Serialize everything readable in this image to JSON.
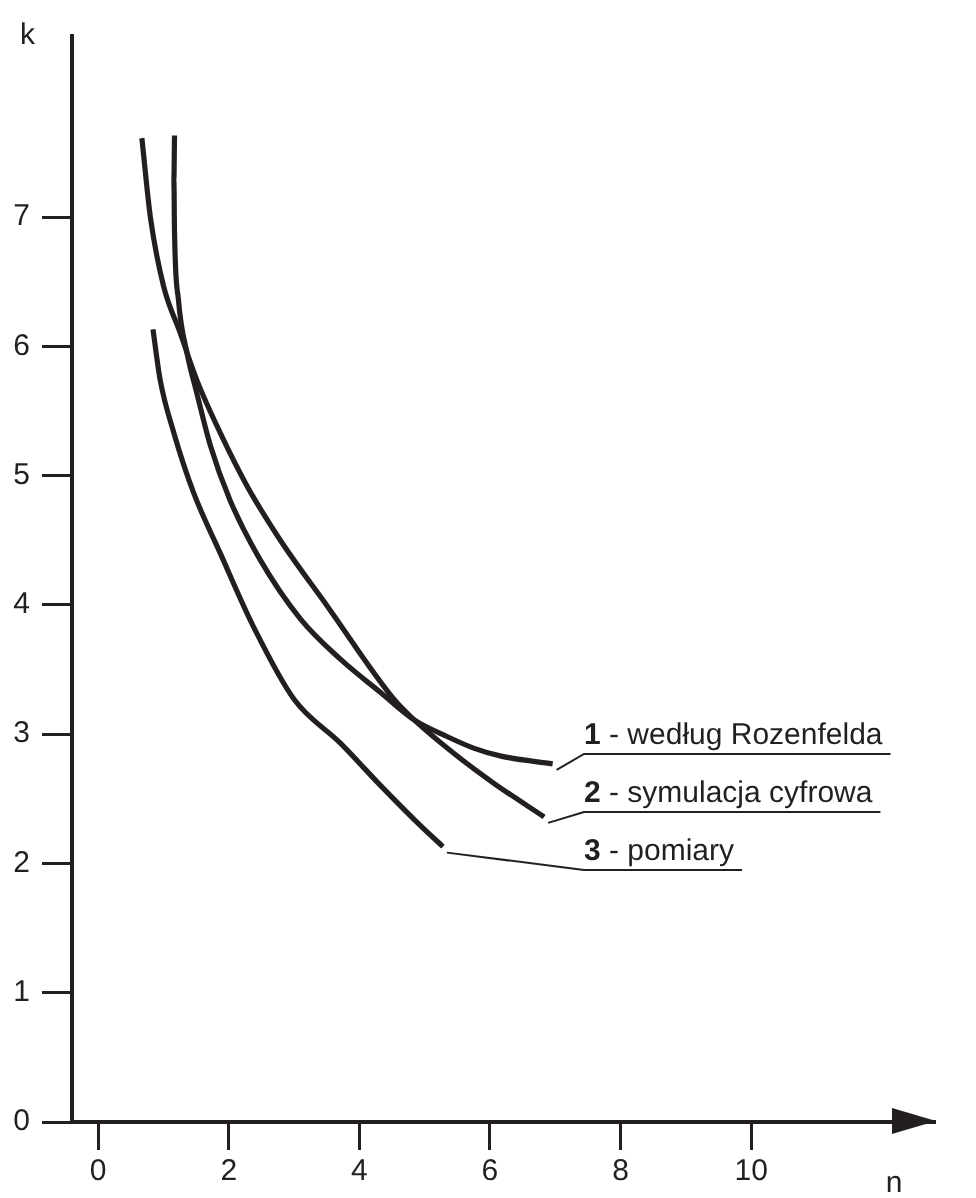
{
  "chart_data": {
    "type": "line",
    "xlabel": "n",
    "ylabel": "k",
    "xlim": [
      -0.4,
      12.8
    ],
    "ylim": [
      0,
      8.4
    ],
    "xticks": [
      0,
      2,
      4,
      6,
      8,
      10
    ],
    "yticks": [
      0,
      1,
      2,
      3,
      4,
      5,
      6,
      7
    ],
    "grid": false,
    "legend": false,
    "marker": "none",
    "line_style": "solid",
    "series": [
      {
        "name": "1 - według Rozenfelda",
        "color": "#231f20",
        "x": [
          1.17,
          1.16,
          1.17,
          1.23,
          1.36,
          1.51,
          1.72,
          2.02,
          2.48,
          3.1,
          3.71,
          4.33,
          4.84,
          5.35,
          5.76,
          6.17,
          6.96
        ],
        "values": [
          7.63,
          7.29,
          6.88,
          6.36,
          5.95,
          5.64,
          5.23,
          4.81,
          4.35,
          3.89,
          3.58,
          3.32,
          3.11,
          2.98,
          2.89,
          2.83,
          2.77
        ]
      },
      {
        "name": "2 - symulacja cyfrowa",
        "color": "#231f20",
        "x": [
          0.67,
          0.8,
          1.0,
          1.26,
          1.51,
          1.87,
          2.28,
          2.79,
          3.51,
          4.53,
          4.84,
          5.45,
          6.06,
          6.83
        ],
        "values": [
          7.61,
          7.0,
          6.47,
          6.1,
          5.74,
          5.33,
          4.92,
          4.5,
          3.99,
          3.27,
          3.11,
          2.85,
          2.62,
          2.36
        ]
      },
      {
        "name": "3 - pomiary",
        "color": "#231f20",
        "x": [
          0.84,
          0.95,
          1.16,
          1.46,
          1.87,
          2.38,
          3.0,
          3.71,
          4.33,
          4.94,
          5.28
        ],
        "values": [
          6.13,
          5.74,
          5.33,
          4.87,
          4.4,
          3.83,
          3.27,
          2.93,
          2.6,
          2.29,
          2.13
        ]
      }
    ]
  }
}
